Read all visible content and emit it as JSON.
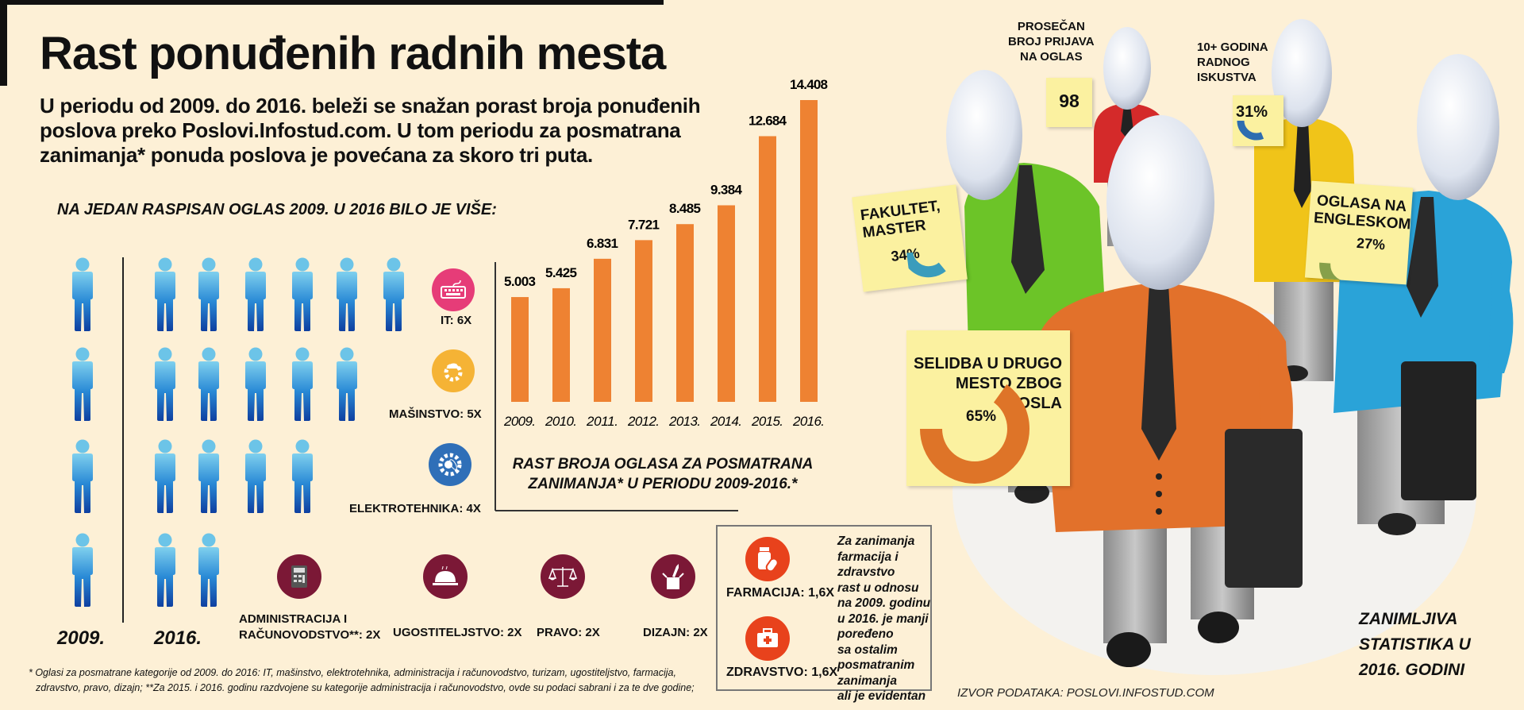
{
  "title": "Rast ponuđenih radnih mesta",
  "intro": [
    "U periodu od 2009. do 2016. beleži se snažan porast broja ponuđenih",
    "poslova preko Poslovi.Infostud.com. U tom periodu za posmatrana",
    "zanimanja* ponuda poslova je povećana za skoro tri puta."
  ],
  "people_section": {
    "heading": "NA JEDAN RASPISAN OGLAS 2009. U 2016 BILO JE VIŠE:",
    "label_2009": "2009.",
    "label_2016": "2016.",
    "rows": [
      {
        "count_2009": 1,
        "count_2016": 6
      },
      {
        "count_2009": 1,
        "count_2016": 5
      },
      {
        "count_2009": 1,
        "count_2016": 4
      },
      {
        "count_2009": 1,
        "count_2016": 2
      }
    ],
    "figure_color": "#2a7fd0"
  },
  "categories": [
    {
      "label": "IT: 6X",
      "icon": "keyboard-icon",
      "color": "#e63c78"
    },
    {
      "label": "MAŠINSTVO: 5X",
      "icon": "gear-helmet-icon",
      "color": "#f5b335"
    },
    {
      "label": "ELEKTROTEHNIKA: 4X",
      "icon": "electro-gear-icon",
      "color": "#2f6fb8"
    },
    {
      "label_lines": [
        "ADMINISTRACIJA I",
        "RAČUNOVODSTVO**: 2X"
      ],
      "icon": "calculator-icon",
      "color": "#7b1836"
    },
    {
      "label": "UGOSTITELJSTVO: 2X",
      "icon": "cloche-icon",
      "color": "#7b1836"
    },
    {
      "label": "PRAVO: 2X",
      "icon": "scales-icon",
      "color": "#7b1836"
    },
    {
      "label": "DIZAJN: 2X",
      "icon": "design-box-icon",
      "color": "#7b1836"
    }
  ],
  "chart_data": {
    "type": "bar",
    "categories": [
      "2009.",
      "2010.",
      "2011.",
      "2012.",
      "2013.",
      "2014.",
      "2015.",
      "2016."
    ],
    "values": [
      5003,
      5425,
      6831,
      7721,
      8485,
      9384,
      12684,
      14408
    ],
    "value_labels": [
      "5.003",
      "5.425",
      "6.831",
      "7.721",
      "8.485",
      "9.384",
      "12.684",
      "14.408"
    ],
    "caption": [
      "RAST BROJA OGLASA ZA POSMATRANA",
      "ZANIMANJA* U PERIODU 2009-2016.*"
    ],
    "ylim": [
      0,
      14408
    ],
    "grid": false,
    "bar_color": "#ee8232"
  },
  "farm_box": {
    "items": [
      {
        "label": "FARMACIJA: 1,6X",
        "icon": "pills-icon",
        "color": "#e8421c"
      },
      {
        "label": "ZDRAVSTVO: 1,6X",
        "icon": "first-aid-kit-icon",
        "color": "#e8421c"
      }
    ],
    "note": [
      "Za zanimanja",
      "farmacija i",
      "zdravstvo",
      "rast u odnosu",
      "na 2009. godinu",
      "u 2016. je manji",
      "poređeno",
      "sa ostalim",
      "posmatranim",
      "zanimanja",
      "ali je evidentan"
    ]
  },
  "stats": {
    "applications": {
      "title": [
        "PROSEČAN",
        "BROJ PRIJAVA",
        "NA OGLAS"
      ],
      "value": "98"
    },
    "experience": {
      "title": [
        "10+ GODINA",
        "RADNOG",
        "ISKUSTVA"
      ],
      "value": "31%",
      "pct": 31,
      "color": "#2e6db0"
    },
    "faculty": {
      "title": [
        "FAKULTET,",
        "MASTER"
      ],
      "value": "34%",
      "pct": 34,
      "color": "#3a9cbc"
    },
    "english": {
      "title": [
        "OGLASA NA",
        "ENGLESKOM"
      ],
      "value": "27%",
      "pct": 27,
      "color": "#86a04a"
    },
    "relocation": {
      "title": [
        "SELIDBA U DRUGO",
        "MESTO ZBOG",
        "POSLA"
      ],
      "value": "65%",
      "pct": 65,
      "color": "#de7428"
    }
  },
  "side_title": [
    "ZANIMLJIVA",
    "STATISTIKA U",
    "2016. GODINI"
  ],
  "source": "IZVOR PODATAKA: POSLOVI.INFOSTUD.COM",
  "footnote": [
    "* Oglasi za posmatrane kategorije od 2009. do 2016: IT, mašinstvo, elektrotehnika, administracija i računovodstvo, turizam, ugostiteljstvo, farmacija,",
    "zdravstvo, pravo, dizajn; **Za 2015. i 2016. godinu razdvojene su kategorije administracija i računovodstvo, ovde su podaci sabrani i za te dve godine;"
  ]
}
